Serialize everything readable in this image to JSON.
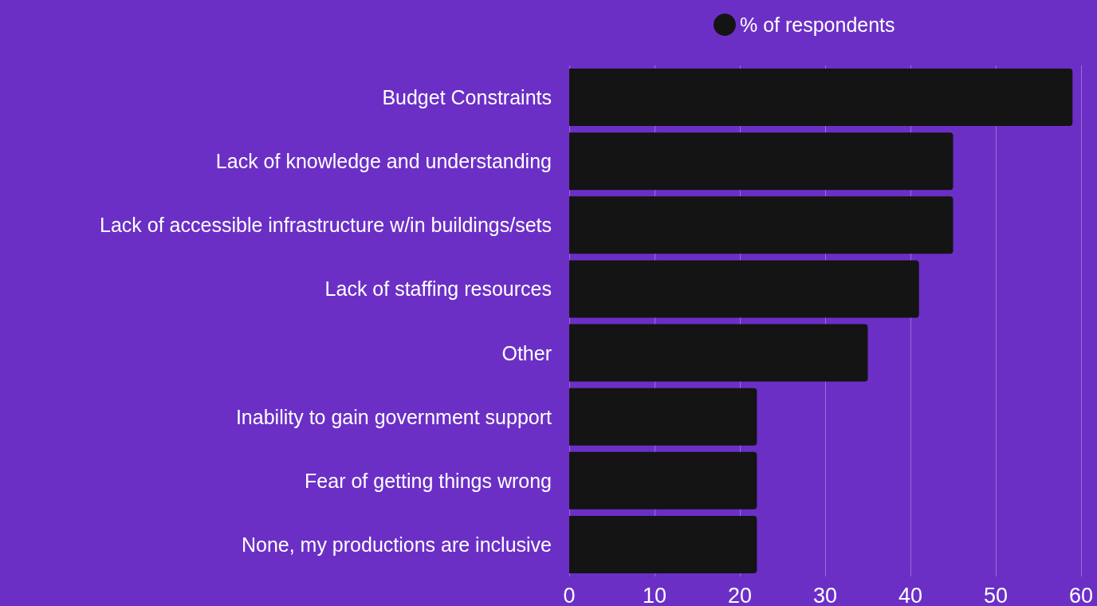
{
  "chart_data": {
    "type": "bar",
    "orientation": "horizontal",
    "categories": [
      "Budget Constraints",
      "Lack of knowledge and understanding",
      "Lack of accessible infrastructure w/in buildings/sets",
      "Lack of staffing resources",
      "Other",
      "Inability to gain government support",
      "Fear of getting things wrong",
      "None, my productions are inclusive"
    ],
    "series": [
      {
        "name": "% of respondents",
        "color": "#141414",
        "values": [
          59,
          45,
          45,
          41,
          35,
          22,
          22,
          22
        ]
      }
    ],
    "xlim": [
      0,
      60
    ],
    "xticks": [
      0,
      10,
      20,
      30,
      40,
      50,
      60
    ],
    "grid": "x",
    "legend": "top"
  }
}
